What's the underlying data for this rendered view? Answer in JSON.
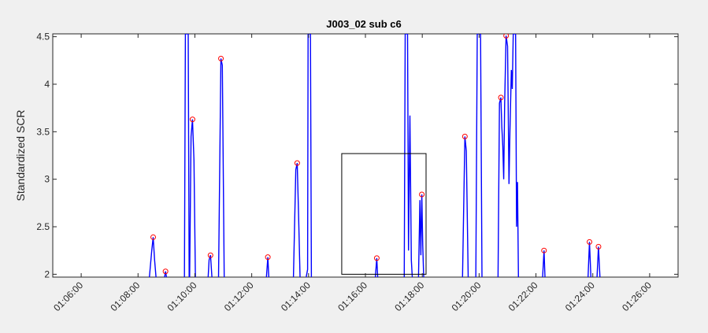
{
  "chart_data": {
    "type": "line",
    "title": "J003_02 sub c6",
    "xlabel": "",
    "ylabel": "Standardized SCR",
    "xlim": [
      "01:05:00",
      "01:27:00"
    ],
    "ylim": [
      1.97,
      4.53
    ],
    "xticks": [
      "01:06:00",
      "01:08:00",
      "01:10:00",
      "01:12:00",
      "01:14:00",
      "01:16:00",
      "01:18:00",
      "01:20:00",
      "01:22:00",
      "01:24:00",
      "01:26:00"
    ],
    "yticks": [
      "2",
      "2.5",
      "3",
      "3.5",
      "4",
      "4.5"
    ],
    "grid": false,
    "colors": {
      "line": "#0000ff",
      "marker": "#ff0000",
      "box": "#000000",
      "axes_bg": "#ffffff",
      "figure_bg": "#f0f0f0"
    },
    "series": [
      {
        "style": "line",
        "segments": [
          [
            [
              "01:08:24",
              1.97
            ],
            [
              "01:08:29",
              2.25
            ],
            [
              "01:08:32",
              2.39
            ],
            [
              "01:08:35",
              2.15
            ],
            [
              "01:08:38",
              1.97
            ]
          ],
          [
            [
              "01:08:56",
              1.97
            ],
            [
              "01:08:58",
              2.03
            ],
            [
              "01:09:00",
              1.97
            ]
          ],
          [
            [
              "01:09:38",
              1.97
            ],
            [
              "01:09:40",
              4.53
            ],
            [
              "01:09:46",
              4.53
            ],
            [
              "01:09:48",
              1.97
            ]
          ],
          [
            [
              "01:09:49",
              1.97
            ],
            [
              "01:09:52",
              3.45
            ],
            [
              "01:09:55",
              3.63
            ],
            [
              "01:09:58",
              3.2
            ],
            [
              "01:10:01",
              1.97
            ]
          ],
          [
            [
              "01:10:28",
              1.97
            ],
            [
              "01:10:30",
              2.15
            ],
            [
              "01:10:33",
              2.2
            ],
            [
              "01:10:36",
              1.97
            ]
          ],
          [
            [
              "01:10:50",
              1.97
            ],
            [
              "01:10:55",
              4.27
            ],
            [
              "01:10:58",
              4.2
            ],
            [
              "01:11:02",
              1.97
            ]
          ],
          [
            [
              "01:12:31",
              1.97
            ],
            [
              "01:12:34",
              2.18
            ],
            [
              "01:12:36",
              1.97
            ]
          ],
          [
            [
              "01:13:28",
              1.97
            ],
            [
              "01:13:33",
              3.1
            ],
            [
              "01:13:36",
              3.17
            ],
            [
              "01:13:39",
              2.6
            ],
            [
              "01:13:42",
              1.97
            ]
          ],
          [
            [
              "01:13:55",
              1.97
            ],
            [
              "01:13:58",
              2.05
            ],
            [
              "01:13:59",
              4.53
            ],
            [
              "01:14:04",
              4.53
            ],
            [
              "01:14:06",
              1.97
            ]
          ],
          [
            [
              "01:16:21",
              1.97
            ],
            [
              "01:16:24",
              2.17
            ],
            [
              "01:16:26",
              1.97
            ]
          ],
          [
            [
              "01:17:22",
              1.97
            ],
            [
              "01:17:24",
              4.53
            ],
            [
              "01:17:29",
              4.53
            ],
            [
              "01:17:31",
              2.25
            ],
            [
              "01:17:34",
              3.67
            ],
            [
              "01:17:37",
              2.15
            ],
            [
              "01:17:39",
              1.97
            ]
          ],
          [
            [
              "01:17:52",
              1.97
            ],
            [
              "01:17:55",
              2.78
            ],
            [
              "01:17:57",
              2.2
            ],
            [
              "01:17:59",
              2.84
            ],
            [
              "01:18:01",
              2.3
            ],
            [
              "01:18:03",
              1.97
            ]
          ],
          [
            [
              "01:19:25",
              1.97
            ],
            [
              "01:19:30",
              3.45
            ],
            [
              "01:19:33",
              3.3
            ],
            [
              "01:19:37",
              1.97
            ]
          ],
          [
            [
              "01:19:53",
              1.97
            ],
            [
              "01:19:56",
              4.53
            ],
            [
              "01:20:03",
              4.53
            ],
            [
              "01:20:06",
              1.97
            ]
          ],
          [
            [
              "01:20:40",
              1.97
            ],
            [
              "01:20:43",
              3.8
            ],
            [
              "01:20:46",
              3.86
            ],
            [
              "01:20:48",
              3.55
            ],
            [
              "01:20:50",
              3.35
            ],
            [
              "01:20:52",
              3.0
            ],
            [
              "01:20:54",
              3.8
            ],
            [
              "01:20:57",
              4.51
            ],
            [
              "01:21:00",
              4.4
            ],
            [
              "01:21:03",
              2.95
            ],
            [
              "01:21:05",
              3.5
            ],
            [
              "01:21:08",
              4.15
            ],
            [
              "01:21:10",
              3.95
            ],
            [
              "01:21:12",
              4.53
            ],
            [
              "01:21:17",
              4.53
            ],
            [
              "01:21:19",
              2.5
            ],
            [
              "01:21:21",
              2.97
            ],
            [
              "01:21:23",
              1.97
            ]
          ],
          [
            [
              "01:22:14",
              1.97
            ],
            [
              "01:22:17",
              2.25
            ],
            [
              "01:22:19",
              1.97
            ]
          ],
          [
            [
              "01:23:50",
              1.97
            ],
            [
              "01:23:53",
              2.34
            ],
            [
              "01:23:56",
              1.97
            ]
          ],
          [
            [
              "01:24:09",
              1.97
            ],
            [
              "01:24:12",
              2.29
            ],
            [
              "01:24:15",
              1.97
            ]
          ]
        ]
      },
      {
        "style": "marker-open-circle",
        "points": [
          [
            "01:08:32",
            2.39
          ],
          [
            "01:08:58",
            2.03
          ],
          [
            "01:09:55",
            3.63
          ],
          [
            "01:10:33",
            2.2
          ],
          [
            "01:10:55",
            4.27
          ],
          [
            "01:12:34",
            2.18
          ],
          [
            "01:13:36",
            3.17
          ],
          [
            "01:16:24",
            2.17
          ],
          [
            "01:17:59",
            2.84
          ],
          [
            "01:19:30",
            3.45
          ],
          [
            "01:20:46",
            3.86
          ],
          [
            "01:20:57",
            4.51
          ],
          [
            "01:22:17",
            2.25
          ],
          [
            "01:23:53",
            2.34
          ],
          [
            "01:24:12",
            2.29
          ]
        ]
      }
    ],
    "annotations": [
      {
        "type": "rectangle",
        "x": [
          "01:15:10",
          "01:18:08"
        ],
        "y": [
          2.0,
          3.27
        ]
      }
    ]
  }
}
